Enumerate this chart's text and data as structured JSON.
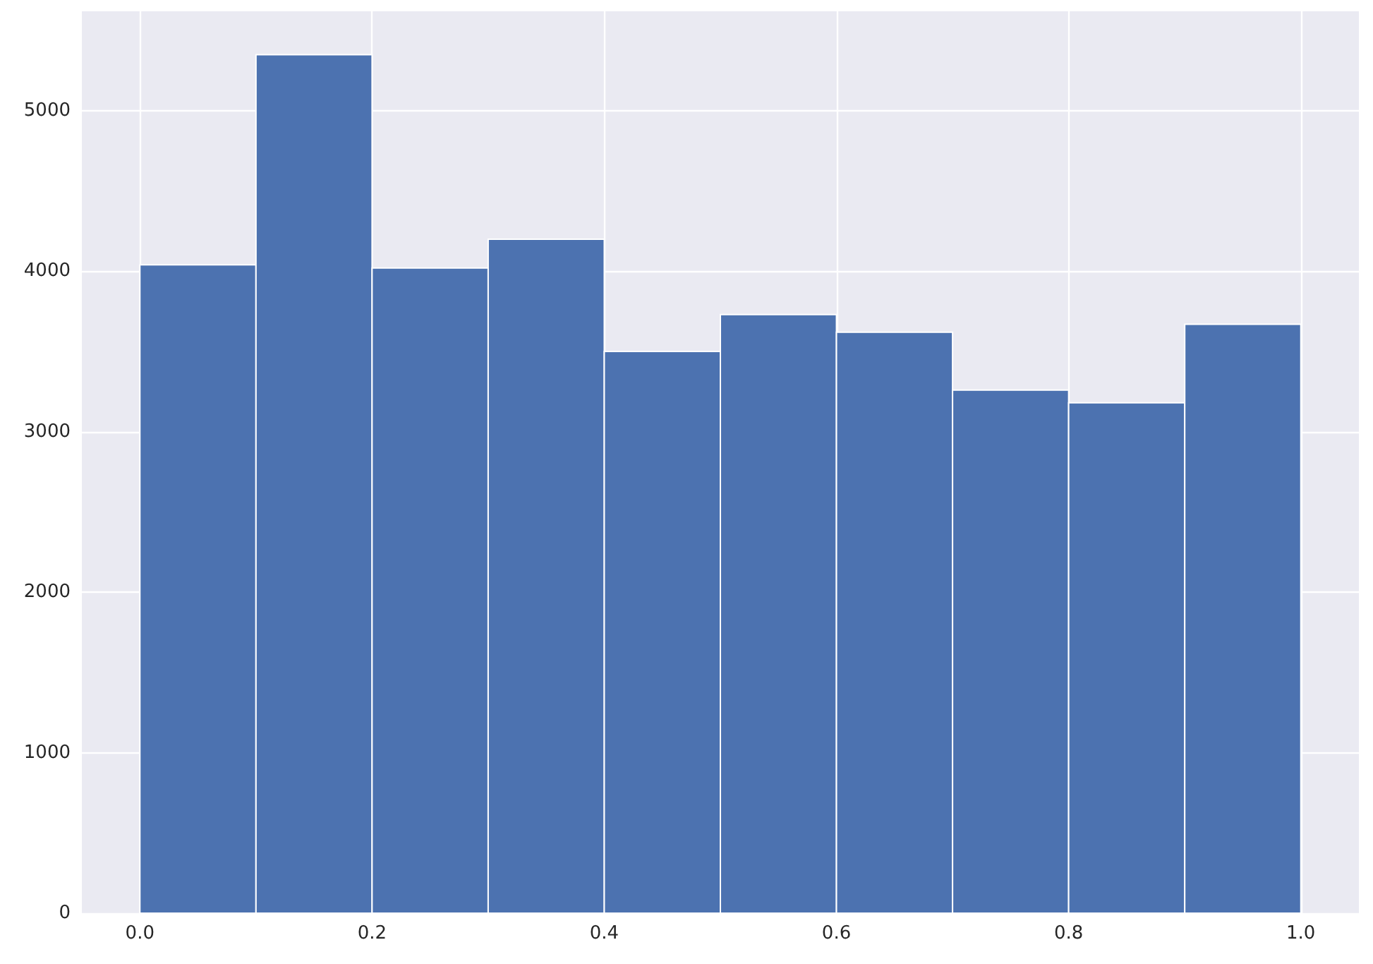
{
  "chart_data": {
    "type": "histogram",
    "bins": [
      0.0,
      0.1,
      0.2,
      0.3,
      0.4,
      0.5,
      0.6,
      0.7,
      0.8,
      0.9,
      1.0
    ],
    "values": [
      4040,
      5350,
      4020,
      4200,
      3500,
      3730,
      3620,
      3260,
      3180,
      3670
    ],
    "color": "#4c72b0",
    "xlim": [
      -0.05,
      1.05
    ],
    "xticks": [
      {
        "value": 0,
        "label": "0.0"
      },
      {
        "value": 0.2,
        "label": "0.2"
      },
      {
        "value": 0.4,
        "label": "0.4"
      },
      {
        "value": 0.6,
        "label": "0.6"
      },
      {
        "value": 0.8,
        "label": "0.8"
      },
      {
        "value": 1,
        "label": "1.0"
      }
    ],
    "ylim": [
      0,
      5620
    ],
    "yticks": [
      0,
      1000,
      2000,
      3000,
      4000,
      5000
    ],
    "grid": true
  }
}
